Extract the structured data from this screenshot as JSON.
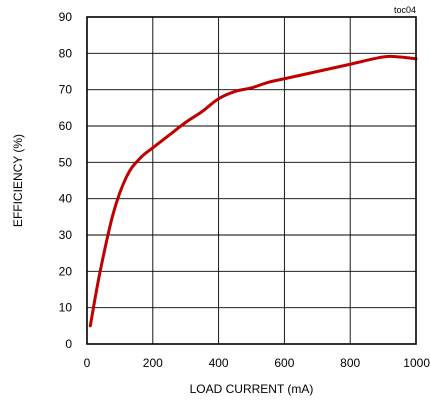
{
  "chart_data": {
    "type": "line",
    "annotation": "toc04",
    "xlabel": "LOAD CURRENT  (mA)",
    "ylabel": "EFFICIENCY (%)",
    "xlim": [
      0,
      1000
    ],
    "ylim": [
      0,
      90
    ],
    "x_ticks": [
      0,
      200,
      400,
      600,
      800,
      1000
    ],
    "x_tick_labels": [
      "0",
      "200",
      "400",
      "600",
      "800",
      "1000"
    ],
    "y_ticks": [
      0,
      10,
      20,
      30,
      40,
      50,
      60,
      70,
      80,
      90
    ],
    "y_tick_labels": [
      "0",
      "10",
      "20",
      "30",
      "40",
      "50",
      "60",
      "70",
      "80",
      "90"
    ],
    "grid": true,
    "line_color": "#c00000",
    "series": [
      {
        "x": [
          10,
          40,
          80,
          120,
          160,
          200,
          250,
          300,
          350,
          400,
          450,
          500,
          550,
          600,
          700,
          800,
          900,
          950,
          1000
        ],
        "y": [
          5,
          20,
          36,
          46,
          51,
          54,
          57.5,
          61,
          64,
          67.5,
          69.5,
          70.5,
          72,
          73,
          75,
          77,
          79,
          79,
          78.5
        ]
      }
    ]
  }
}
